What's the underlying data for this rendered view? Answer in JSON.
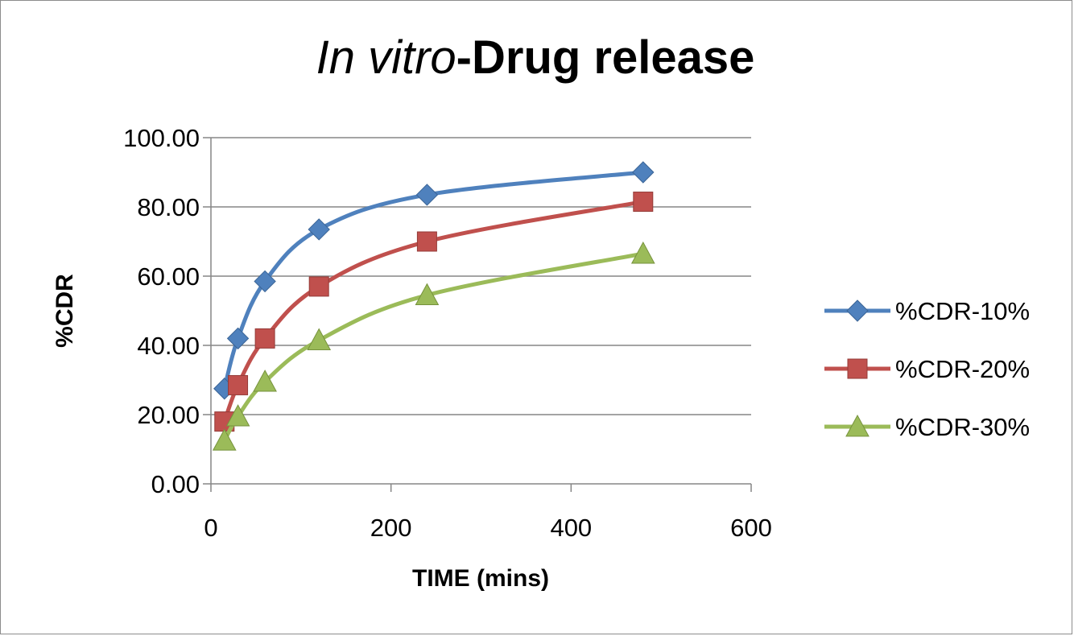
{
  "chart_data": {
    "type": "line",
    "title_italic": "In vitro",
    "title_rest": "-Drug release",
    "xlabel": "TIME (mins)",
    "ylabel": "%CDR",
    "xlim": [
      0,
      600
    ],
    "ylim": [
      0,
      100
    ],
    "x_ticks": [
      "0",
      "200",
      "400",
      "600"
    ],
    "y_ticks": [
      "0.00",
      "20.00",
      "40.00",
      "60.00",
      "80.00",
      "100.00"
    ],
    "grid": "horizontal",
    "legend_position": "right",
    "series": [
      {
        "name": "%CDR-10%",
        "marker": "diamond",
        "color": "#4f81bd",
        "x": [
          15,
          30,
          60,
          120,
          240,
          480
        ],
        "y": [
          27.5,
          42.0,
          58.5,
          73.5,
          83.5,
          90.0
        ]
      },
      {
        "name": "%CDR-20%",
        "marker": "square",
        "color": "#c0504d",
        "x": [
          15,
          30,
          60,
          120,
          240,
          480
        ],
        "y": [
          18.0,
          28.5,
          42.0,
          57.0,
          70.0,
          81.5
        ]
      },
      {
        "name": "%CDR-30%",
        "marker": "triangle",
        "color": "#9bbb59",
        "x": [
          15,
          30,
          60,
          120,
          240,
          480
        ],
        "y": [
          12.5,
          19.5,
          29.5,
          41.5,
          54.5,
          66.5
        ]
      }
    ]
  }
}
